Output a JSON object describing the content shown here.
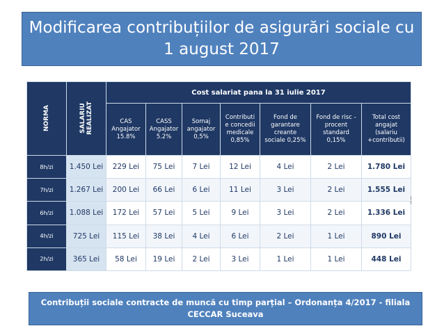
{
  "title": {
    "line1": "Modificarea contribuțiilor de asigurări sociale cu",
    "line2": "1 august 2017"
  },
  "table": {
    "col_norma": "NORMA",
    "col_salary_line1": "SALARIU",
    "col_salary_line2": "REALIZAT",
    "group_header": "Cost salariat pana la 31 iulie 2017",
    "sub_headers": [
      [
        "CAS",
        "Angajator",
        "15.8%"
      ],
      [
        "CASS",
        "Angajator",
        "5.2%"
      ],
      [
        "Somaj",
        "angajator",
        "0,5%"
      ],
      [
        "Contributi",
        "e concedii",
        "medicale",
        "0,85%"
      ],
      [
        "Fond de",
        "garantare",
        "creante",
        "sociale 0,25%"
      ],
      [
        "Fond de risc -",
        "procent",
        "standard",
        "0,15%"
      ],
      [
        "Total cost",
        "angajat",
        "(salariu",
        "+contributii)"
      ]
    ],
    "rows": [
      [
        "8h/zi",
        "1.450 Lei",
        "229 Lei",
        "75 Lei",
        "7 Lei",
        "12 Lei",
        "4 Lei",
        "2 Lei",
        "1.780 Lei"
      ],
      [
        "7h/zi",
        "1.267 Lei",
        "200 Lei",
        "66 Lei",
        "6 Lei",
        "11 Lei",
        "3 Lei",
        "2 Lei",
        "1.555 Lei"
      ],
      [
        "6h/zi",
        "1.088 Lei",
        "172 Lei",
        "57 Lei",
        "5 Lei",
        "9 Lei",
        "3 Lei",
        "2 Lei",
        "1.336 Lei"
      ],
      [
        "4h/zi",
        "725 Lei",
        "115 Lei",
        "38 Lei",
        "4 Lei",
        "6 Lei",
        "2 Lei",
        "1 Lei",
        "890 Lei"
      ],
      [
        "2h/zi",
        "365 Lei",
        "58 Lei",
        "19 Lei",
        "2 Lei",
        "3 Lei",
        "1 Lei",
        "1 Lei",
        "448 Lei"
      ]
    ]
  },
  "footer": {
    "line1": "Contribuții sociale contracte de muncă cu timp parțial – Ordonanța 4/2017 -  filiala",
    "line2": "CECCAR Suceava"
  },
  "colors": {
    "title_bg": "#4f81bd",
    "header_bg": "#1f3864",
    "salary_bg": "#d6e3f0",
    "text_dark": "#1f3864"
  }
}
